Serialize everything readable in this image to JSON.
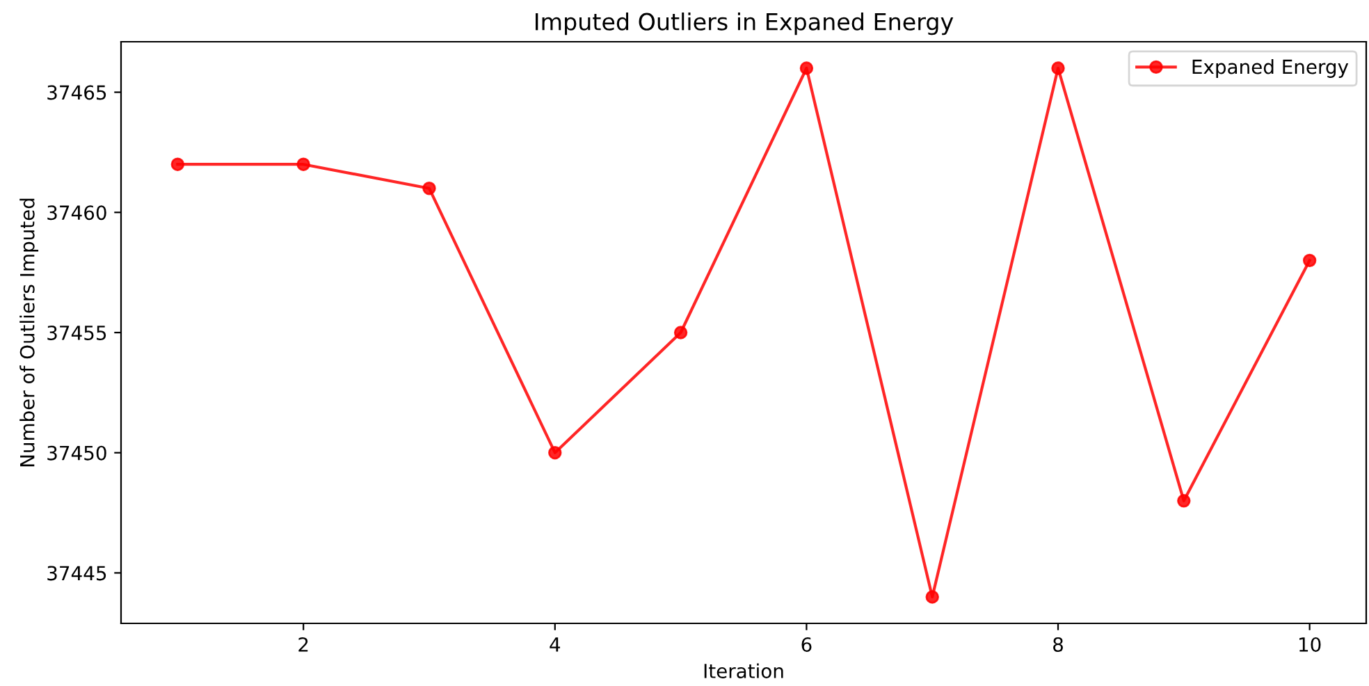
{
  "chart_data": {
    "type": "line",
    "title": "Imputed Outliers in Expaned Energy",
    "xlabel": "Iteration",
    "ylabel": "Number of Outliers Imputed",
    "x": [
      1,
      2,
      3,
      4,
      5,
      6,
      7,
      8,
      9,
      10
    ],
    "series": [
      {
        "name": "Expaned Energy",
        "color": "#ff0000",
        "values": [
          37462,
          37462,
          37461,
          37450,
          37455,
          37466,
          37444,
          37466,
          37448,
          37458
        ]
      }
    ],
    "xlim": [
      0.55,
      10.45
    ],
    "xticks": [
      2,
      4,
      6,
      8,
      10
    ],
    "ylim": [
      37442.9,
      37467.1
    ],
    "yticks": [
      37445,
      37450,
      37455,
      37460,
      37465
    ],
    "marker": "circle",
    "line_style": "solid",
    "legend": "top right",
    "grid": false
  }
}
